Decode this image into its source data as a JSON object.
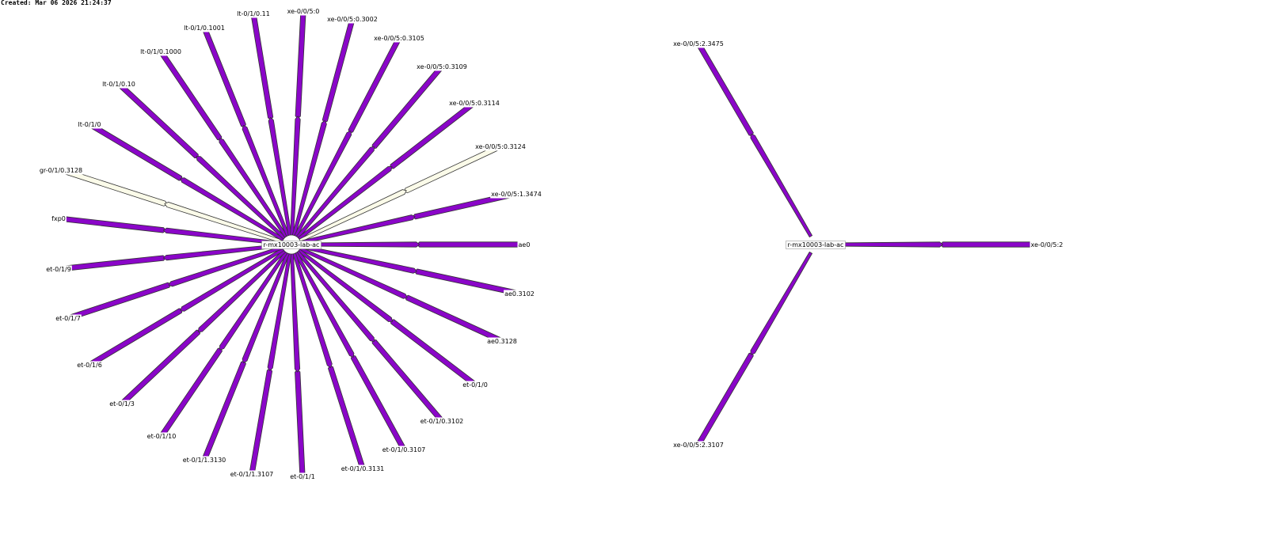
{
  "created": "Created: Mar 06 2026 21:24:37",
  "colors": {
    "active_link": "#8a06c8",
    "inactive_link": "#fbfbe9",
    "outline": "#333333"
  },
  "graphs": [
    {
      "center": {
        "label": "r-mx10003-lab-ac"
      },
      "interfaces": [
        {
          "label": "ae0",
          "status": "active"
        },
        {
          "label": "ae0.3102",
          "status": "active"
        },
        {
          "label": "ae0.3128",
          "status": "active"
        },
        {
          "label": "et-0/1/0",
          "status": "active"
        },
        {
          "label": "et-0/1/0.3102",
          "status": "active"
        },
        {
          "label": "et-0/1/0.3107",
          "status": "active"
        },
        {
          "label": "et-0/1/0.3131",
          "status": "active"
        },
        {
          "label": "et-0/1/1",
          "status": "active"
        },
        {
          "label": "et-0/1/1.3107",
          "status": "active"
        },
        {
          "label": "et-0/1/1.3130",
          "status": "active"
        },
        {
          "label": "et-0/1/10",
          "status": "active"
        },
        {
          "label": "et-0/1/3",
          "status": "active"
        },
        {
          "label": "et-0/1/6",
          "status": "active"
        },
        {
          "label": "et-0/1/7",
          "status": "active"
        },
        {
          "label": "et-0/1/9",
          "status": "active"
        },
        {
          "label": "fxp0",
          "status": "active"
        },
        {
          "label": "gr-0/1/0.3128",
          "status": "inactive"
        },
        {
          "label": "lt-0/1/0",
          "status": "active"
        },
        {
          "label": "lt-0/1/0.10",
          "status": "active"
        },
        {
          "label": "lt-0/1/0.1000",
          "status": "active"
        },
        {
          "label": "lt-0/1/0.1001",
          "status": "active"
        },
        {
          "label": "lt-0/1/0.11",
          "status": "active"
        },
        {
          "label": "xe-0/0/5:0",
          "status": "active"
        },
        {
          "label": "xe-0/0/5:0.3002",
          "status": "active"
        },
        {
          "label": "xe-0/0/5:0.3105",
          "status": "active"
        },
        {
          "label": "xe-0/0/5:0.3109",
          "status": "active"
        },
        {
          "label": "xe-0/0/5:0.3114",
          "status": "active"
        },
        {
          "label": "xe-0/0/5:0.3124",
          "status": "inactive"
        },
        {
          "label": "xe-0/0/5:1.3474",
          "status": "active"
        }
      ]
    },
    {
      "center": {
        "label": "r-mx10003-lab-ac"
      },
      "interfaces": [
        {
          "label": "xe-0/0/5:2",
          "status": "active"
        },
        {
          "label": "xe-0/0/5:2.3107",
          "status": "active"
        },
        {
          "label": "xe-0/0/5:2.3475",
          "status": "active"
        }
      ]
    }
  ]
}
